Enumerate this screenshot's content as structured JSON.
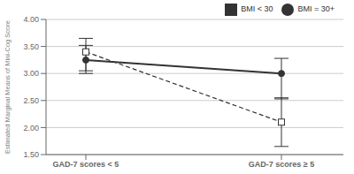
{
  "chart_data": {
    "type": "line",
    "categories": [
      "GAD-7 scores < 5",
      "GAD-7 scores ≥ 5"
    ],
    "series": [
      {
        "name": "BMI < 30",
        "color": "#333333",
        "line_style": "dashed",
        "marker": "square",
        "values": [
          3.4,
          2.1
        ],
        "ci_lower": [
          3.05,
          1.65
        ],
        "ci_upper": [
          3.65,
          2.55
        ]
      },
      {
        "name": "BMI = 30+",
        "color": "#333333",
        "line_style": "solid",
        "marker": "circle",
        "values": [
          3.25,
          3.0
        ],
        "ci_lower": [
          3.0,
          2.53
        ],
        "ci_upper": [
          3.52,
          3.28
        ]
      }
    ],
    "ylabel": "Estimated Marginal Means of Mini-Cog Score",
    "ylim": [
      1.5,
      4.0
    ],
    "yticks": [
      {
        "value": 1.5,
        "label": "1.50"
      },
      {
        "value": 2.0,
        "label": "2.00"
      },
      {
        "value": 2.5,
        "label": "2.50"
      },
      {
        "value": 3.0,
        "label": "3.00"
      },
      {
        "value": 3.5,
        "label": "3.50"
      },
      {
        "value": 4.0,
        "label": "4.00"
      }
    ],
    "grid": true,
    "legend": "upper right"
  }
}
